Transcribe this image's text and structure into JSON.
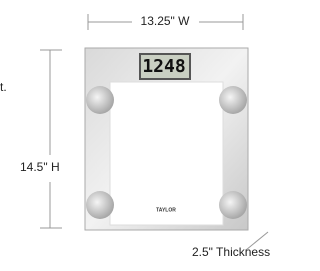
{
  "annotations": {
    "cut_off": "t.",
    "width": "13.25\" W",
    "height": "14.5\" H",
    "thickness": "2.5\" Thickness"
  },
  "scale": {
    "display": "1248",
    "brand": "TAYLOR"
  }
}
